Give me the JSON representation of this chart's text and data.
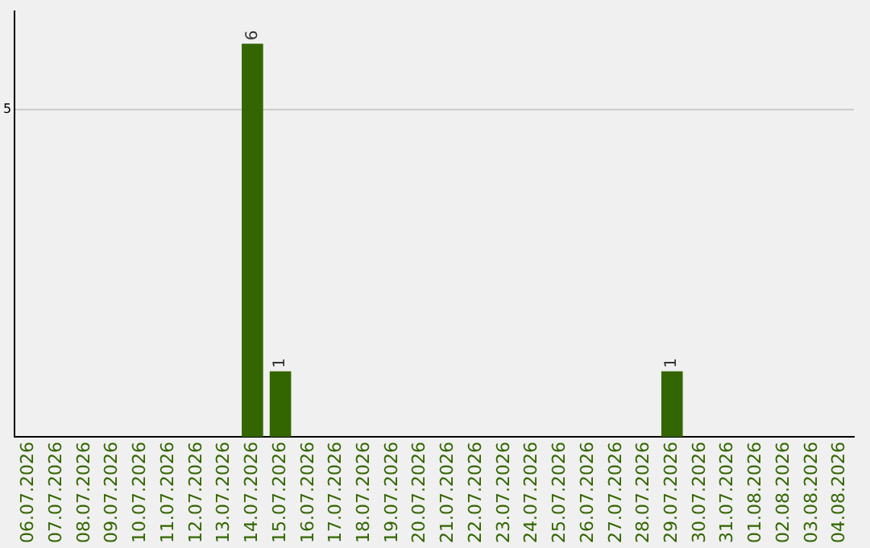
{
  "chart_data": {
    "type": "bar",
    "categories": [
      "06.07.2026",
      "07.07.2026",
      "08.07.2026",
      "09.07.2026",
      "10.07.2026",
      "11.07.2026",
      "12.07.2026",
      "13.07.2026",
      "14.07.2026",
      "15.07.2026",
      "16.07.2026",
      "17.07.2026",
      "18.07.2026",
      "19.07.2026",
      "20.07.2026",
      "21.07.2026",
      "22.07.2026",
      "23.07.2026",
      "24.07.2026",
      "25.07.2026",
      "26.07.2026",
      "27.07.2026",
      "28.07.2026",
      "29.07.2026",
      "30.07.2026",
      "31.07.2026",
      "01.08.2026",
      "02.08.2026",
      "03.08.2026",
      "04.08.2026"
    ],
    "values": [
      0,
      0,
      0,
      0,
      0,
      0,
      0,
      0,
      6,
      1,
      0,
      0,
      0,
      0,
      0,
      0,
      0,
      0,
      0,
      0,
      0,
      0,
      0,
      1,
      0,
      0,
      0,
      0,
      0,
      0
    ],
    "color": "#336600",
    "value_labels": [
      null,
      null,
      null,
      null,
      null,
      null,
      null,
      null,
      "6",
      "1",
      null,
      null,
      null,
      null,
      null,
      null,
      null,
      null,
      null,
      null,
      null,
      null,
      null,
      "1",
      null,
      null,
      null,
      null,
      null,
      null
    ],
    "ylim": [
      0,
      6.5
    ],
    "yticks": [
      5
    ],
    "grid": "y",
    "legend": false
  }
}
